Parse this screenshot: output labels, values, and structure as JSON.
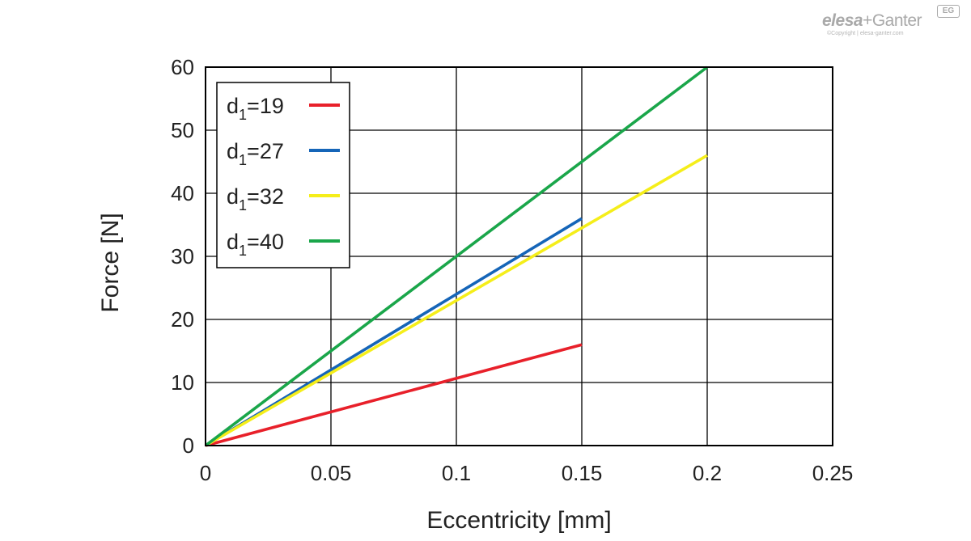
{
  "logo": {
    "brand_elesa": "elesa",
    "brand_plus": "+",
    "brand_ganter": "Ganter",
    "badge": "EG",
    "copyright": "©Copyright | elesa-ganter.com"
  },
  "chart_data": {
    "type": "line",
    "title": "",
    "xlabel": "Eccentricity [mm]",
    "ylabel": "Force [N]",
    "xlim": [
      0,
      0.25
    ],
    "ylim": [
      0,
      60
    ],
    "xticks": [
      0,
      0.05,
      0.1,
      0.15,
      0.2,
      0.25
    ],
    "xtick_labels": [
      "0",
      "0.05",
      "0.1",
      "0.15",
      "0.2",
      "0.25"
    ],
    "yticks": [
      0,
      10,
      20,
      30,
      40,
      50,
      60
    ],
    "ytick_labels": [
      "0",
      "10",
      "20",
      "30",
      "40",
      "50",
      "60"
    ],
    "grid": true,
    "legend_position": "top-left",
    "series": [
      {
        "name_base": "d",
        "name_sub": "1",
        "name_value": "=19",
        "color": "#e8202a",
        "x": [
          0,
          0.15
        ],
        "y": [
          0,
          16
        ]
      },
      {
        "name_base": "d",
        "name_sub": "1",
        "name_value": "=27",
        "color": "#1565b8",
        "x": [
          0,
          0.15
        ],
        "y": [
          0,
          36
        ]
      },
      {
        "name_base": "d",
        "name_sub": "1",
        "name_value": "=32",
        "color": "#f5ee1a",
        "x": [
          0,
          0.2
        ],
        "y": [
          0,
          46
        ]
      },
      {
        "name_base": "d",
        "name_sub": "1",
        "name_value": "=40",
        "color": "#1aa64a",
        "x": [
          0,
          0.2
        ],
        "y": [
          0,
          60
        ]
      }
    ]
  }
}
